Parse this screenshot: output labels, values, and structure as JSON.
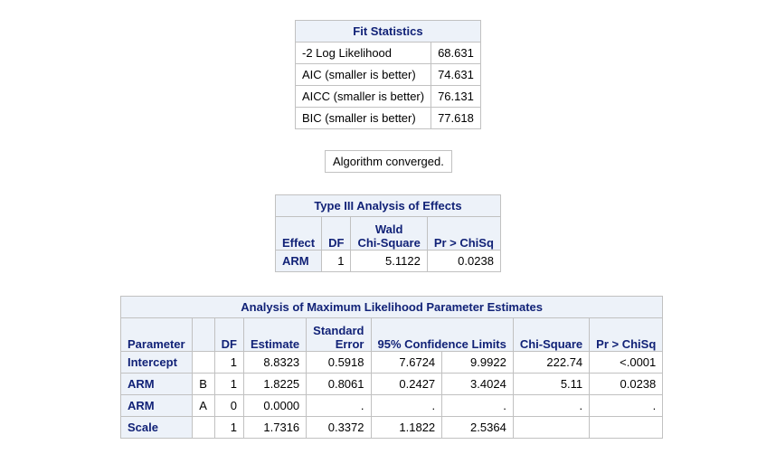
{
  "fit_statistics": {
    "title": "Fit Statistics",
    "rows": [
      {
        "label": "-2 Log Likelihood",
        "value": "68.631"
      },
      {
        "label": "AIC (smaller is better)",
        "value": "74.631"
      },
      {
        "label": "AICC (smaller is better)",
        "value": "76.131"
      },
      {
        "label": "BIC (smaller is better)",
        "value": "77.618"
      }
    ]
  },
  "convergence": {
    "message": "Algorithm converged."
  },
  "type3": {
    "title": "Type III Analysis of Effects",
    "headers": {
      "effect": "Effect",
      "df": "DF",
      "wald_line1": "Wald",
      "wald_line2": "Chi-Square",
      "p": "Pr > ChiSq"
    },
    "rows": [
      {
        "effect": "ARM",
        "df": "1",
        "chisq": "5.1122",
        "p": "0.0238"
      }
    ]
  },
  "mle": {
    "title": "Analysis of Maximum Likelihood Parameter Estimates",
    "headers": {
      "parameter": "Parameter",
      "df": "DF",
      "estimate": "Estimate",
      "se_line1": "Standard",
      "se_line2": "Error",
      "ci": "95% Confidence Limits",
      "chisq": "Chi-Square",
      "p": "Pr > ChiSq"
    },
    "rows": [
      {
        "parameter": "Intercept",
        "level": "",
        "df": "1",
        "estimate": "8.8323",
        "se": "0.5918",
        "lower": "7.6724",
        "upper": "9.9922",
        "chisq": "222.74",
        "p": "<.0001"
      },
      {
        "parameter": "ARM",
        "level": "B",
        "df": "1",
        "estimate": "1.8225",
        "se": "0.8061",
        "lower": "0.2427",
        "upper": "3.4024",
        "chisq": "5.11",
        "p": "0.0238"
      },
      {
        "parameter": "ARM",
        "level": "A",
        "df": "0",
        "estimate": "0.0000",
        "se": ".",
        "lower": ".",
        "upper": ".",
        "chisq": ".",
        "p": "."
      },
      {
        "parameter": "Scale",
        "level": "",
        "df": "1",
        "estimate": "1.7316",
        "se": "0.3372",
        "lower": "1.1822",
        "upper": "2.5364",
        "chisq": "",
        "p": ""
      }
    ]
  }
}
